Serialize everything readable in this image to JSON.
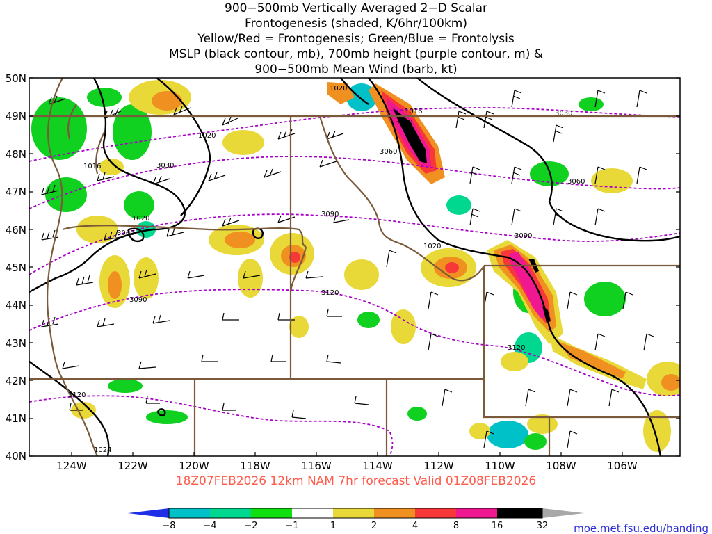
{
  "title": {
    "line1": "900−500mb Vertically Averaged 2−D Scalar",
    "line2": "Frontogenesis (shaded, K/6hr/100km)",
    "line3": "Yellow/Red = Frontogenesis;  Green/Blue = Frontolysis",
    "line4": "MSLP (black contour, mb), 700mb height (purple contour, m) &",
    "line5": "900−500mb Mean Wind (barb, kt)"
  },
  "lat_labels": [
    "50N",
    "49N",
    "48N",
    "47N",
    "46N",
    "45N",
    "44N",
    "43N",
    "42N",
    "41N",
    "40N"
  ],
  "lon_labels": [
    "124W",
    "122W",
    "120W",
    "118W",
    "116W",
    "114W",
    "112W",
    "110W",
    "108W",
    "106W"
  ],
  "mslp_labels": [
    "1020",
    "1016",
    "1020",
    "1016",
    "1020",
    "1020",
    "1024"
  ],
  "height_labels": [
    "3030",
    "3030",
    "3060",
    "3060",
    "3030",
    "3060",
    "3090",
    "3090",
    "3120",
    "3090",
    "3120",
    "3120"
  ],
  "valid_text": "18Z07FEB2026 12km NAM 7hr forecast Valid 01Z08FEB2026",
  "colorbar": {
    "labels": [
      "−8",
      "−4",
      "−2",
      "−1",
      "1",
      "2",
      "4",
      "8",
      "16",
      "32"
    ],
    "colors": [
      "#1f2fe8",
      "#00c0c8",
      "#00d890",
      "#10e010",
      "#ffffff",
      "#e8d838",
      "#f09020",
      "#f83838",
      "#f01890",
      "#000000",
      "#a8a8a8"
    ]
  },
  "credit": "moe.met.fsu.edu/banding"
}
